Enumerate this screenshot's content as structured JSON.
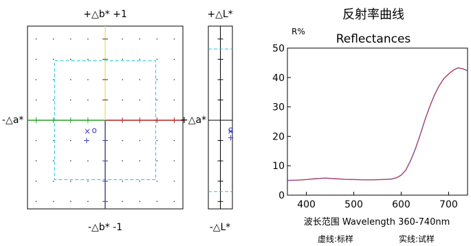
{
  "ab_panel": {
    "top_label": "+△b*  +1",
    "bottom_label": "-△b*  -1",
    "left_label": "-△a*",
    "right_label": "+△a*",
    "colors": {
      "frame": "#000000",
      "dots": "#333333",
      "tolerance": "#22c4d8",
      "a_positive": "#b02020",
      "a_negative": "#20a020",
      "b_positive": "#e8e070",
      "b_negative": "#3a3a8a",
      "marker": "#3a3acc"
    },
    "tolerance_fraction": 0.5,
    "markers": [
      {
        "symbol": "×",
        "a": -0.23,
        "b": -0.12
      },
      {
        "symbol": "o",
        "a": -0.14,
        "b": -0.11
      },
      {
        "symbol": "+",
        "a": -0.24,
        "b": -0.22
      }
    ]
  },
  "l_panel": {
    "top_label": "+△L*",
    "bottom_label": "-△L*",
    "tolerance_fraction": 0.78,
    "markers": [
      {
        "symbol": "o",
        "l": -0.1
      },
      {
        "symbol": "×",
        "l": -0.12
      },
      {
        "symbol": "+",
        "l": -0.19
      }
    ]
  },
  "chart_data": {
    "type": "line",
    "title": "反射率曲线",
    "subtitle": "Reflectances",
    "ylabel": "R%",
    "xlabel": "波长范围 Wavelength 360-740nm",
    "legend": {
      "dashed": "虚线:标样",
      "solid": "实线:试样"
    },
    "xlim": [
      360,
      740
    ],
    "ylim": [
      0,
      50
    ],
    "xticks": [
      400,
      500,
      600,
      700
    ],
    "yticks": [
      0,
      10,
      20,
      30,
      40,
      50
    ],
    "colors": {
      "sample": "#cc3333",
      "standard": "#5a5acc"
    },
    "series": [
      {
        "x": [
          360,
          380,
          400,
          420,
          440,
          460,
          480,
          500,
          520,
          540,
          560,
          580,
          590,
          600,
          610,
          620,
          630,
          640,
          650,
          660,
          670,
          680,
          690,
          700,
          710,
          720,
          730,
          740
        ],
        "values": [
          5.0,
          5.1,
          5.3,
          5.6,
          5.8,
          5.6,
          5.4,
          5.3,
          5.2,
          5.2,
          5.3,
          5.5,
          5.9,
          6.8,
          8.6,
          11.8,
          15.8,
          20.5,
          25.5,
          30.0,
          34.0,
          37.2,
          39.6,
          41.2,
          42.5,
          43.3,
          43.0,
          42.3
        ]
      }
    ]
  }
}
